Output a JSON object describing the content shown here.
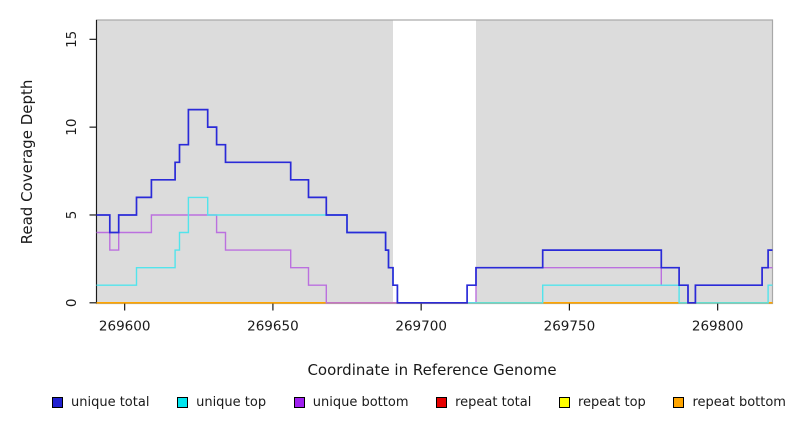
{
  "figure": {
    "y_axis_title": "Read Coverage Depth",
    "x_axis_title": "Coordinate in Reference Genome"
  },
  "legend": {
    "items": [
      {
        "label": "unique total",
        "color": "#2020d0"
      },
      {
        "label": "unique top",
        "color": "#00e5ee"
      },
      {
        "label": "unique bottom",
        "color": "#a020f0"
      },
      {
        "label": "repeat total",
        "color": "#e60000"
      },
      {
        "label": "repeat top",
        "color": "#ffff00"
      },
      {
        "label": "repeat bottom",
        "color": "#ffa500"
      }
    ]
  },
  "chart_data": {
    "type": "line",
    "subtype": "step-coverage",
    "title": "",
    "xlabel": "Coordinate in Reference Genome",
    "ylabel": "Read Coverage Depth",
    "xlim": [
      269590.5,
      269818.5
    ],
    "ylim": [
      0,
      16.1
    ],
    "x_ticks": [
      269600,
      269650,
      269700,
      269750,
      269800
    ],
    "y_ticks": [
      0,
      5,
      10,
      15
    ],
    "grid": false,
    "legend_position": "bottom",
    "background": {
      "shaded_color": "#dcdcdc",
      "shaded_regions": [
        [
          269590.5,
          269690.5
        ],
        [
          269718.5,
          269818.5
        ]
      ],
      "unshaded_gap": [
        269690.5,
        269718.5
      ]
    },
    "axis_color": "#1a1a1a",
    "plot_border_color": "#a8a8a8",
    "series": [
      {
        "name": "unique total",
        "color": "#2a2ad8",
        "z": 6,
        "width": 1.7,
        "x_end": 269818.5,
        "steps": [
          [
            269590.5,
            5
          ],
          [
            269595,
            4
          ],
          [
            269598,
            5
          ],
          [
            269604,
            6
          ],
          [
            269609,
            7
          ],
          [
            269617,
            8
          ],
          [
            269618.5,
            9
          ],
          [
            269621.5,
            11
          ],
          [
            269628,
            10
          ],
          [
            269631,
            9
          ],
          [
            269634,
            8
          ],
          [
            269656,
            7
          ],
          [
            269662,
            6
          ],
          [
            269668,
            5
          ],
          [
            269675,
            4
          ],
          [
            269688,
            3
          ],
          [
            269689,
            2
          ],
          [
            269690.5,
            1
          ],
          [
            269692,
            0
          ],
          [
            269715.5,
            1
          ],
          [
            269718.5,
            2
          ],
          [
            269741,
            3
          ],
          [
            269781,
            2
          ],
          [
            269787,
            1
          ],
          [
            269790,
            0
          ],
          [
            269792.5,
            1
          ],
          [
            269815,
            2
          ],
          [
            269817,
            3
          ]
        ]
      },
      {
        "name": "unique top",
        "color": "#52e4ec",
        "z": 5,
        "width": 1.4,
        "x_end": 269818.5,
        "steps": [
          [
            269590.5,
            1
          ],
          [
            269604,
            2
          ],
          [
            269617,
            3
          ],
          [
            269618.5,
            4
          ],
          [
            269621.5,
            6
          ],
          [
            269628,
            5
          ],
          [
            269675,
            4
          ],
          [
            269688,
            3
          ],
          [
            269689,
            2
          ],
          [
            269690.5,
            1
          ],
          [
            269692,
            0
          ],
          [
            269741,
            1
          ],
          [
            269787,
            0
          ],
          [
            269817,
            1
          ]
        ]
      },
      {
        "name": "unique bottom",
        "color": "#bb70df",
        "z": 4,
        "width": 1.4,
        "x_end": 269818.5,
        "steps": [
          [
            269590.5,
            4
          ],
          [
            269595,
            3
          ],
          [
            269598,
            4
          ],
          [
            269609,
            5
          ],
          [
            269631,
            4
          ],
          [
            269634,
            3
          ],
          [
            269656,
            2
          ],
          [
            269662,
            1
          ],
          [
            269668,
            0
          ],
          [
            269718.5,
            2
          ],
          [
            269781,
            1
          ],
          [
            269790,
            0
          ],
          [
            269792.5,
            1
          ],
          [
            269815,
            2
          ]
        ]
      },
      {
        "name": "repeat total",
        "color": "#e60000",
        "z": 1,
        "width": 1.4,
        "x_end": 269818.5,
        "steps": [
          [
            269590.5,
            0
          ]
        ]
      },
      {
        "name": "repeat top",
        "color": "#ffff00",
        "z": 2,
        "width": 1.4,
        "x_end": 269818.5,
        "steps": [
          [
            269590.5,
            0
          ]
        ]
      },
      {
        "name": "repeat bottom",
        "color": "#ffa500",
        "z": 3,
        "width": 1.6,
        "x_end": 269818.5,
        "steps": [
          [
            269590.5,
            0
          ]
        ]
      }
    ]
  }
}
